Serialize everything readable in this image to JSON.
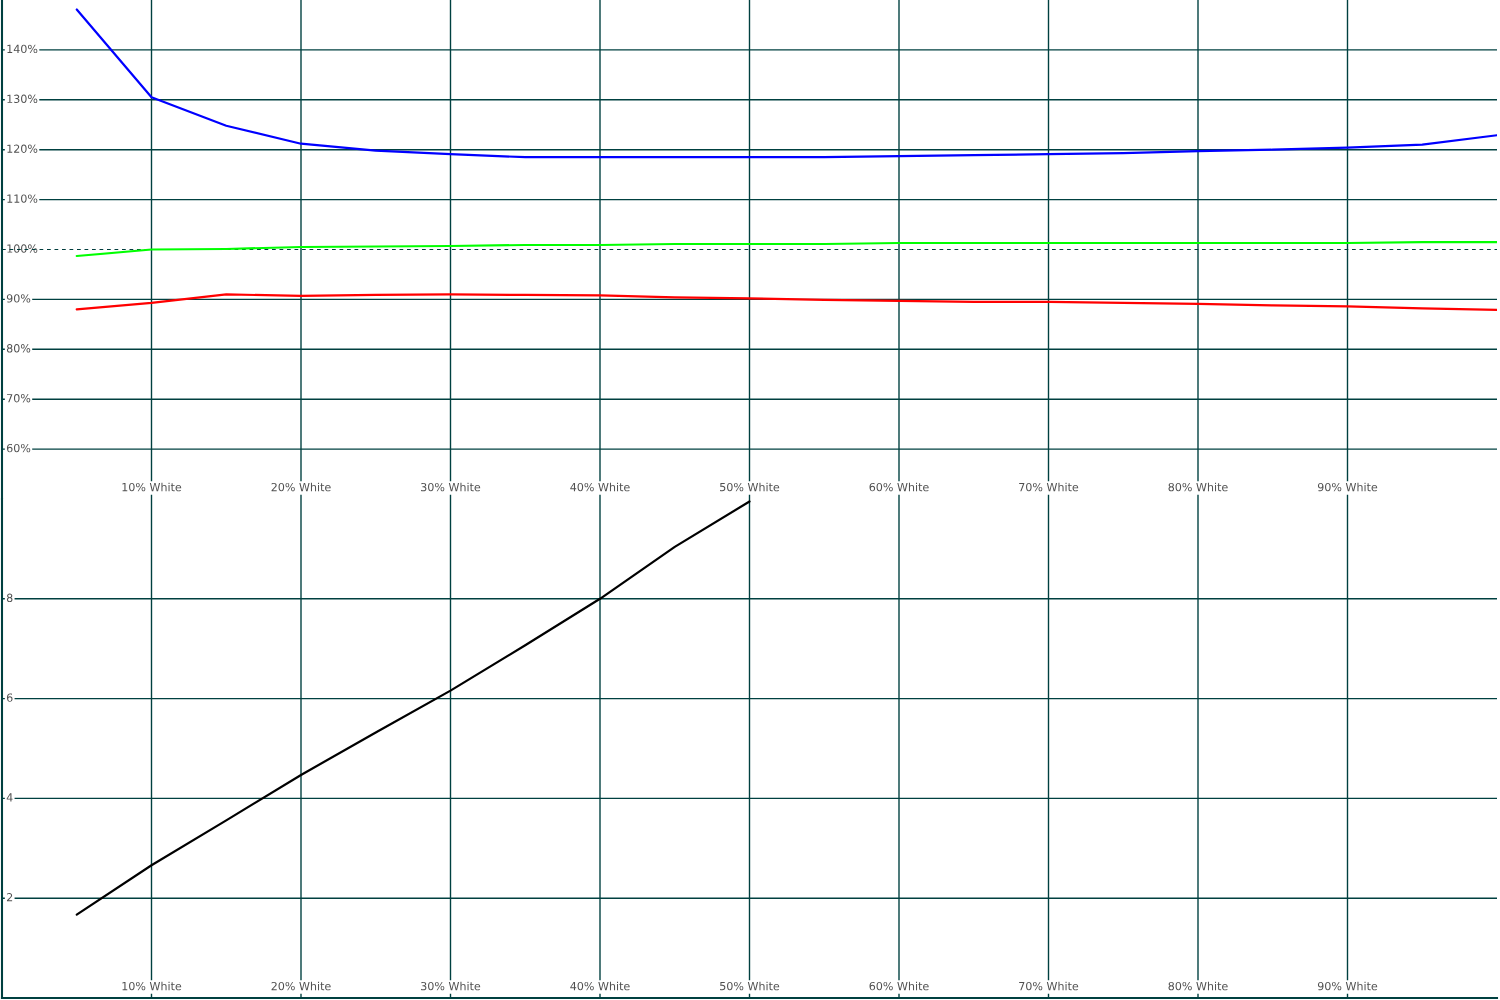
{
  "chart_data": [
    {
      "type": "line",
      "x": [
        5,
        10,
        15,
        20,
        25,
        30,
        35,
        40,
        45,
        50,
        55,
        60,
        65,
        70,
        75,
        80,
        85,
        90,
        95,
        100
      ],
      "series": [
        {
          "color": "#ff0000",
          "values": [
            88.0,
            89.3,
            91.0,
            90.7,
            90.9,
            91.0,
            90.9,
            90.8,
            90.4,
            90.2,
            89.9,
            89.7,
            89.5,
            89.5,
            89.3,
            89.1,
            88.8,
            88.6,
            88.2,
            87.9
          ]
        },
        {
          "color": "#00ff00",
          "values": [
            98.7,
            100.0,
            100.1,
            100.5,
            100.6,
            100.7,
            100.9,
            100.9,
            101.1,
            101.1,
            101.1,
            101.3,
            101.3,
            101.3,
            101.3,
            101.3,
            101.3,
            101.3,
            101.5,
            101.5
          ]
        },
        {
          "color": "#0000ff",
          "values": [
            148.1,
            130.5,
            124.8,
            121.2,
            119.8,
            119.1,
            118.5,
            118.5,
            118.5,
            118.5,
            118.5,
            118.7,
            118.9,
            119.1,
            119.3,
            119.7,
            120.0,
            120.4,
            121.0,
            122.9
          ]
        }
      ],
      "xlim": [
        0,
        100
      ],
      "xticks": [
        {
          "value": 10,
          "label": "10% White"
        },
        {
          "value": 20,
          "label": "20% White"
        },
        {
          "value": 30,
          "label": "30% White"
        },
        {
          "value": 40,
          "label": "40% White"
        },
        {
          "value": 50,
          "label": "50% White"
        },
        {
          "value": 60,
          "label": "60% White"
        },
        {
          "value": 70,
          "label": "70% White"
        },
        {
          "value": 80,
          "label": "80% White"
        },
        {
          "value": 90,
          "label": "90% White"
        }
      ],
      "ylim": [
        50,
        150
      ],
      "yticks": [
        {
          "value": 60,
          "label": "60%"
        },
        {
          "value": 70,
          "label": "70%"
        },
        {
          "value": 80,
          "label": "80%"
        },
        {
          "value": 90,
          "label": "90%"
        },
        {
          "value": 100,
          "label": "100%"
        },
        {
          "value": 110,
          "label": "110%"
        },
        {
          "value": 120,
          "label": "120%"
        },
        {
          "value": 130,
          "label": "130%"
        },
        {
          "value": 140,
          "label": "140%"
        }
      ],
      "grid": true,
      "ref_lines": [
        {
          "axis": "y",
          "value": 100,
          "color": "#003c3c",
          "line_style": "dashed"
        }
      ]
    },
    {
      "type": "line",
      "x": [
        5,
        10,
        15,
        20,
        25,
        30,
        35,
        40,
        45,
        50
      ],
      "series": [
        {
          "color": "#000000",
          "values": [
            1.67,
            2.66,
            3.56,
            4.47,
            5.32,
            6.16,
            7.07,
            8.0,
            9.04,
            9.95
          ]
        }
      ],
      "xlim": [
        0,
        100
      ],
      "xticks": [
        {
          "value": 10,
          "label": "10% White"
        },
        {
          "value": 20,
          "label": "20% White"
        },
        {
          "value": 30,
          "label": "30% White"
        },
        {
          "value": 40,
          "label": "40% White"
        },
        {
          "value": 50,
          "label": "50% White"
        },
        {
          "value": 60,
          "label": "60% White"
        },
        {
          "value": 70,
          "label": "70% White"
        },
        {
          "value": 80,
          "label": "80% White"
        },
        {
          "value": 90,
          "label": "90% White"
        }
      ],
      "ylim": [
        0,
        10
      ],
      "yticks": [
        2,
        4,
        6,
        8
      ],
      "grid": true
    }
  ]
}
